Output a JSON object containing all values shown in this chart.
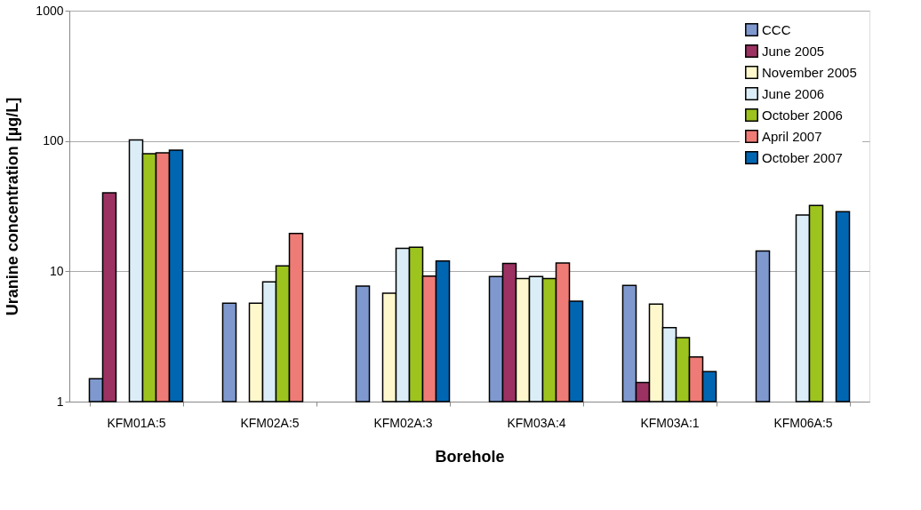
{
  "chart_data": {
    "type": "bar",
    "xlabel": "Borehole",
    "ylabel": "Uranine concentration [µg/L]",
    "categories": [
      "KFM01A:5",
      "KFM02A:5",
      "KFM02A:3",
      "KFM03A:4",
      "KFM03A:1",
      "KFM06A:5"
    ],
    "series": [
      {
        "name": "CCC",
        "color": "#7f99cf",
        "values": [
          1.5,
          5.7,
          7.7,
          9.1,
          7.8,
          14.3
        ]
      },
      {
        "name": "June 2005",
        "color": "#9b3262",
        "values": [
          40,
          null,
          null,
          11.5,
          1.4,
          null
        ]
      },
      {
        "name": "November 2005",
        "color": "#fff8cc",
        "values": [
          null,
          5.7,
          6.8,
          8.8,
          5.6,
          null
        ]
      },
      {
        "name": "June 2006",
        "color": "#dbeef8",
        "values": [
          102,
          8.3,
          15,
          9.1,
          3.7,
          27
        ]
      },
      {
        "name": "October 2006",
        "color": "#9dc31e",
        "values": [
          80,
          11,
          15.3,
          8.8,
          3.1,
          32
        ]
      },
      {
        "name": "April 2007",
        "color": "#ef7b76",
        "values": [
          81,
          19.5,
          9.2,
          11.6,
          2.2,
          null
        ]
      },
      {
        "name": "October 2007",
        "color": "#0066b2",
        "values": [
          85,
          null,
          12,
          5.9,
          1.7,
          28.7
        ]
      }
    ],
    "log": true,
    "ylim": [
      1,
      1000
    ],
    "yticks": [
      1,
      10,
      100,
      1000
    ],
    "grid": "y",
    "legend": "top right"
  }
}
